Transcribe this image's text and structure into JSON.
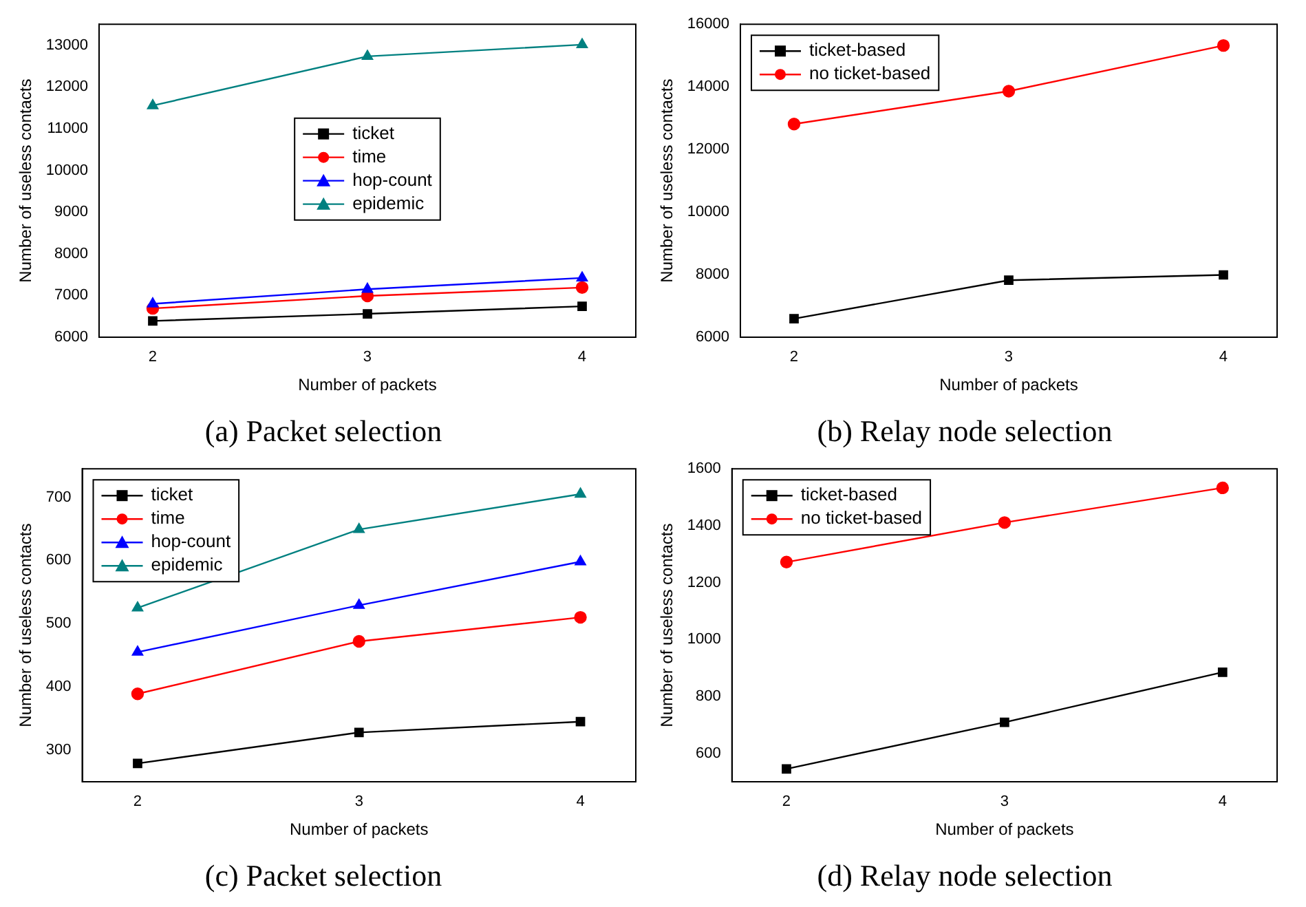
{
  "chart_data": [
    {
      "type": "line",
      "title": "(a) Packet selection",
      "xlabel": "Number of packets",
      "ylabel": "Number of useless contacts",
      "x": [
        2,
        3,
        4
      ],
      "xlim": [
        1.75,
        4.25
      ],
      "xticks": [
        2,
        3,
        4
      ],
      "ylim": [
        6000,
        13500
      ],
      "yticks": [
        6000,
        7000,
        8000,
        9000,
        10000,
        11000,
        12000,
        13000
      ],
      "grid": false,
      "legend": "center",
      "series": [
        {
          "name": "ticket",
          "color": "#000000",
          "marker": "square",
          "values": [
            6390,
            6560,
            6740
          ]
        },
        {
          "name": "time",
          "color": "#ff0000",
          "marker": "circle",
          "values": [
            6690,
            6990,
            7190
          ]
        },
        {
          "name": "hop-count",
          "color": "#0000ff",
          "marker": "triangle",
          "values": [
            6800,
            7150,
            7420
          ]
        },
        {
          "name": "epidemic",
          "color": "#008080",
          "marker": "triangle",
          "values": [
            11550,
            12730,
            13010
          ]
        }
      ]
    },
    {
      "type": "line",
      "title": "(b) Relay node selection",
      "xlabel": "Number of packets",
      "ylabel": "Number of useless contacts",
      "x": [
        2,
        3,
        4
      ],
      "xlim": [
        1.75,
        4.25
      ],
      "xticks": [
        2,
        3,
        4
      ],
      "ylim": [
        6000,
        16000
      ],
      "yticks": [
        6000,
        8000,
        10000,
        12000,
        14000,
        16000
      ],
      "grid": false,
      "legend": "top left",
      "series": [
        {
          "name": "ticket-based",
          "color": "#000000",
          "marker": "square",
          "values": [
            6590,
            7820,
            7990
          ]
        },
        {
          "name": "no ticket-based",
          "color": "#ff0000",
          "marker": "circle",
          "values": [
            12810,
            13860,
            15320
          ]
        }
      ]
    },
    {
      "type": "line",
      "title": "(c) Packet selection",
      "xlabel": "Number of packets",
      "ylabel": "Number of useless contacts",
      "x": [
        2,
        3,
        4
      ],
      "xlim": [
        1.75,
        4.25
      ],
      "xticks": [
        2,
        3,
        4
      ],
      "ylim": [
        250,
        745
      ],
      "yticks": [
        300,
        400,
        500,
        600,
        700
      ],
      "grid": false,
      "legend": "top left",
      "series": [
        {
          "name": "ticket",
          "color": "#000000",
          "marker": "square",
          "values": [
            279,
            328,
            345
          ]
        },
        {
          "name": "time",
          "color": "#ff0000",
          "marker": "circle",
          "values": [
            389,
            472,
            510
          ]
        },
        {
          "name": "hop-count",
          "color": "#0000ff",
          "marker": "triangle",
          "values": [
            455,
            529,
            598
          ]
        },
        {
          "name": "epidemic",
          "color": "#008080",
          "marker": "triangle",
          "values": [
            525,
            649,
            705
          ]
        }
      ]
    },
    {
      "type": "line",
      "title": "(d) Relay node selection",
      "xlabel": "Number of packets",
      "ylabel": "Number of useless contacts",
      "x": [
        2,
        3,
        4
      ],
      "xlim": [
        1.75,
        4.25
      ],
      "xticks": [
        2,
        3,
        4
      ],
      "ylim": [
        500,
        1600
      ],
      "yticks": [
        600,
        800,
        1000,
        1200,
        1400,
        1600
      ],
      "grid": false,
      "legend": "top left",
      "series": [
        {
          "name": "ticket-based",
          "color": "#000000",
          "marker": "square",
          "values": [
            545,
            709,
            885
          ]
        },
        {
          "name": "no ticket-based",
          "color": "#ff0000",
          "marker": "circle",
          "values": [
            1272,
            1411,
            1533
          ]
        }
      ]
    }
  ]
}
